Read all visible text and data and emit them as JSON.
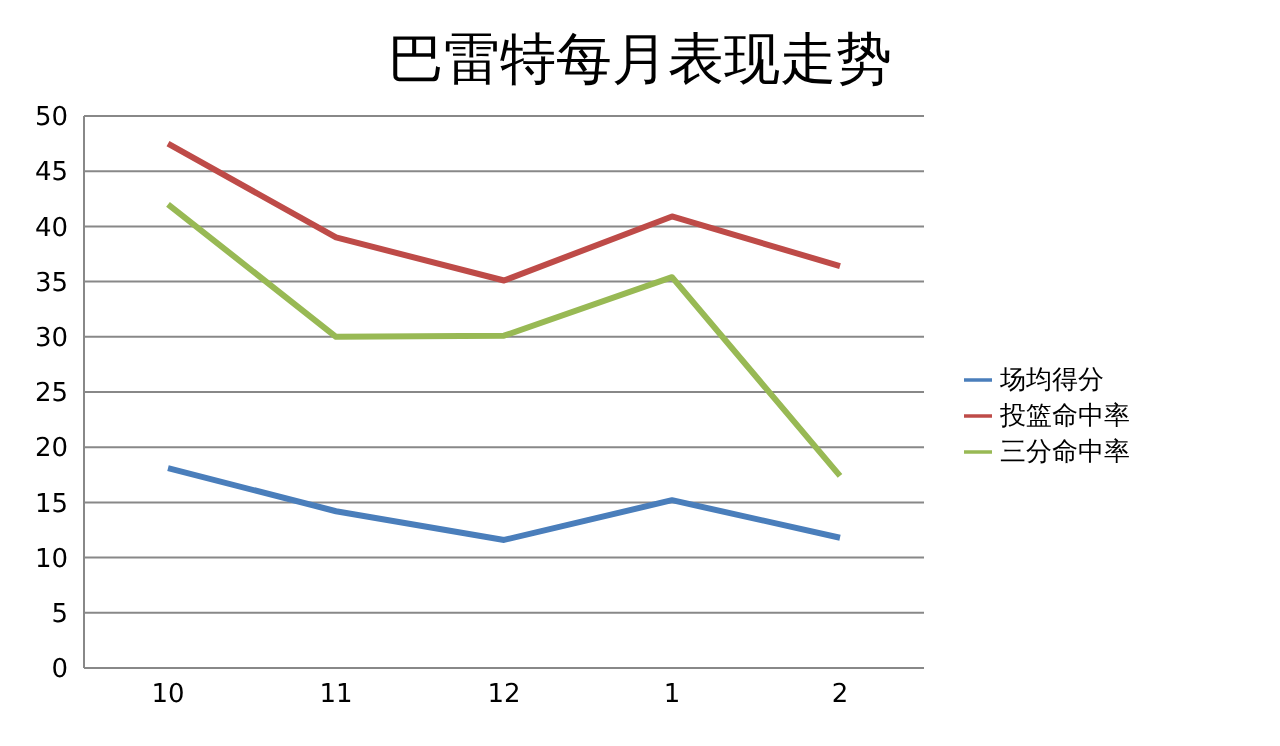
{
  "chart_data": {
    "type": "line",
    "title": "巴雷特每月表现走势",
    "categories": [
      "10",
      "11",
      "12",
      "1",
      "2"
    ],
    "series": [
      {
        "name": "场均得分",
        "color": "#4a7ebb",
        "values": [
          18.1,
          14.2,
          11.6,
          15.2,
          11.8
        ]
      },
      {
        "name": "投篮命中率",
        "color": "#be4b48",
        "values": [
          47.5,
          39,
          35.1,
          40.9,
          36.4
        ]
      },
      {
        "name": "三分命中率",
        "color": "#98b954",
        "values": [
          42,
          30,
          30.1,
          35.4,
          17.4
        ]
      }
    ],
    "ylim": [
      0,
      50
    ],
    "yticks": [
      0,
      5,
      10,
      15,
      20,
      25,
      30,
      35,
      40,
      45,
      50
    ],
    "grid": "y",
    "legend": "right",
    "marker": "none",
    "line_style": "solid"
  }
}
